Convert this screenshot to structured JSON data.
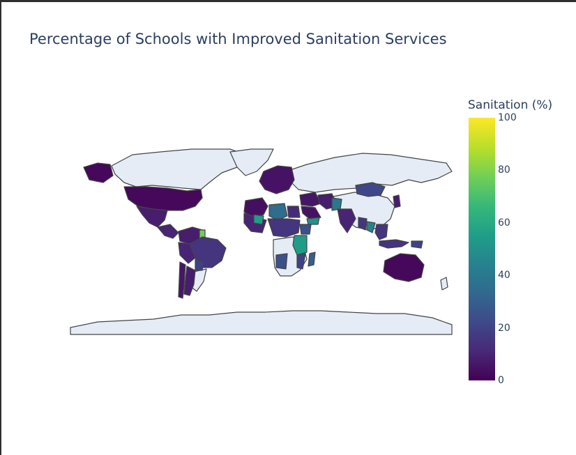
{
  "chart_data": {
    "type": "choropleth",
    "title": "Percentage of Schools with Improved Sanitation Services",
    "colorbar": {
      "title": "Sanitation (%)",
      "range": [
        0,
        100
      ],
      "ticks": [
        "0",
        "20",
        "40",
        "60",
        "80",
        "100"
      ],
      "colorscale": "Viridis"
    },
    "no_data_color": "#e5ecf6",
    "border_color": "#444444",
    "regions": [
      {
        "name": "United States",
        "value": 2
      },
      {
        "name": "Alaska",
        "value": 2
      },
      {
        "name": "Mexico",
        "value": 8
      },
      {
        "name": "Central America",
        "value": 10
      },
      {
        "name": "Colombia / Venezuela",
        "value": 8
      },
      {
        "name": "Guyana",
        "value": 78
      },
      {
        "name": "Brazil",
        "value": 15
      },
      {
        "name": "Peru / Bolivia",
        "value": 10
      },
      {
        "name": "Paraguay",
        "value": 20
      },
      {
        "name": "Argentina",
        "value": 8
      },
      {
        "name": "Chile",
        "value": 6
      },
      {
        "name": "Europe",
        "value": 5
      },
      {
        "name": "North Africa West",
        "value": 4
      },
      {
        "name": "Libya",
        "value": 35
      },
      {
        "name": "Egypt",
        "value": 12
      },
      {
        "name": "West Africa",
        "value": 10
      },
      {
        "name": "Mali",
        "value": 55
      },
      {
        "name": "Chad / Sudan",
        "value": 15
      },
      {
        "name": "Middle East",
        "value": 6
      },
      {
        "name": "Saudi Arabia",
        "value": 5
      },
      {
        "name": "Yemen",
        "value": 50
      },
      {
        "name": "Ethiopia",
        "value": 25
      },
      {
        "name": "Kenya / Tanzania",
        "value": 55
      },
      {
        "name": "Angola",
        "value": 25
      },
      {
        "name": "Mozambique",
        "value": 20
      },
      {
        "name": "Madagascar",
        "value": 30
      },
      {
        "name": "Iran / Afghanistan",
        "value": 8
      },
      {
        "name": "Pakistan",
        "value": 40
      },
      {
        "name": "India",
        "value": 10
      },
      {
        "name": "Mongolia",
        "value": 22
      },
      {
        "name": "Myanmar",
        "value": 15
      },
      {
        "name": "Thailand",
        "value": 45
      },
      {
        "name": "Southeast Asia",
        "value": 15
      },
      {
        "name": "Indonesia",
        "value": 15
      },
      {
        "name": "Papua New Guinea",
        "value": 20
      },
      {
        "name": "Japan / Korea",
        "value": 8
      },
      {
        "name": "Australia",
        "value": 2
      }
    ]
  }
}
